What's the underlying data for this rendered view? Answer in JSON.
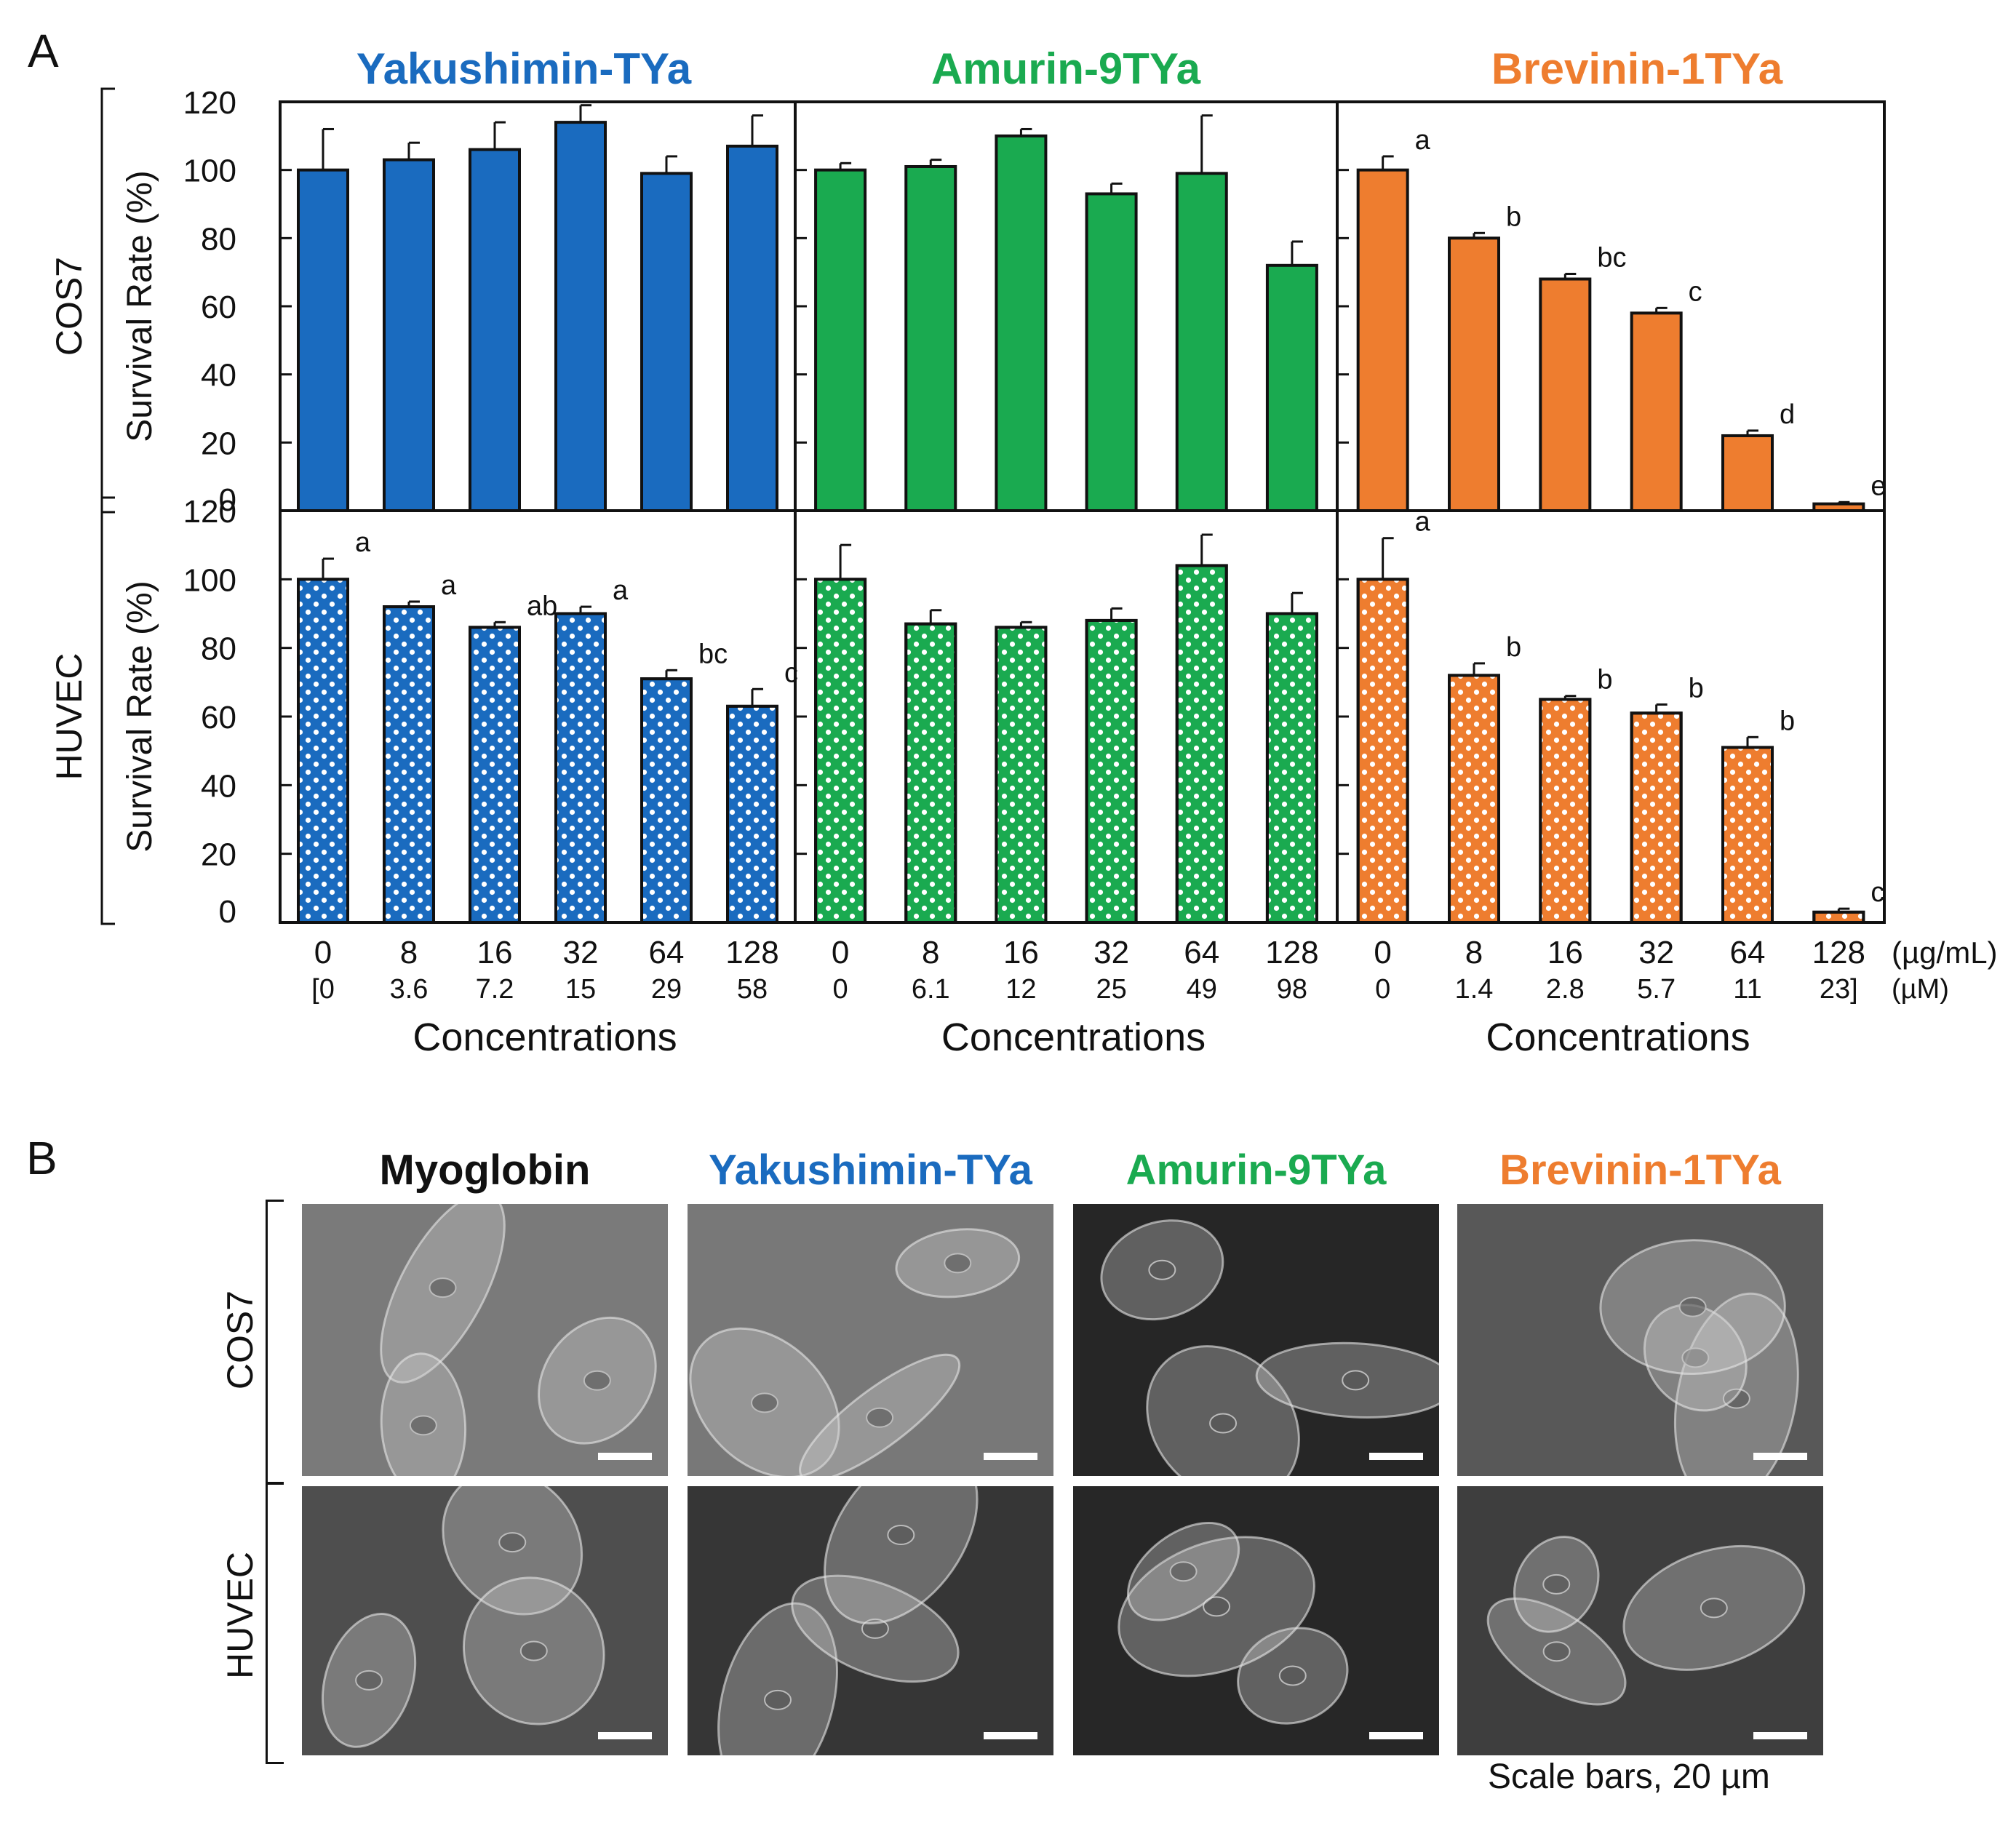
{
  "panel_a_label": "A",
  "panel_b_label": "B",
  "colors": {
    "yakushimin": "#1a6bbf",
    "amurin": "#1aaa50",
    "brevinin": "#ee7d2f",
    "myoglobin": "#111111"
  },
  "peptides": [
    "Yakushimin-TYa",
    "Amurin-9TYa",
    "Brevinin-1TYa"
  ],
  "cell_lines": [
    "COS7",
    "HUVEC"
  ],
  "y_axis_title": "Survival  Rate (%)",
  "y_ticks": [
    "120",
    "100",
    "80",
    "60",
    "40",
    "20",
    "0"
  ],
  "x_axis_title": "Concentrations",
  "unit_mass": "(µg/mL)",
  "unit_molar": "(µM)",
  "chart_data": {
    "type": "bar",
    "ylabel": "Survival  Rate (%)",
    "xlabel": "Concentrations",
    "ylim": [
      0,
      120
    ],
    "categories": [
      "0",
      "8",
      "16",
      "32",
      "64",
      "128"
    ],
    "molar_labels": [
      [
        "[0",
        "3.6",
        "7.2",
        "15",
        "29",
        "58"
      ],
      [
        "0",
        "6.1",
        "12",
        "25",
        "49",
        "98"
      ],
      [
        "0",
        "1.4",
        "2.8",
        "5.7",
        "11",
        "23]"
      ]
    ],
    "panels": [
      {
        "cell": "COS7",
        "peptide": "Yakushimin-TYa",
        "values": [
          100,
          103,
          106,
          114,
          99,
          107
        ],
        "errors": [
          12,
          5,
          8,
          5,
          5,
          9
        ],
        "letters": [
          "",
          "",
          "",
          "",
          "",
          ""
        ]
      },
      {
        "cell": "COS7",
        "peptide": "Amurin-9TYa",
        "values": [
          100,
          101,
          110,
          93,
          99,
          72
        ],
        "errors": [
          2,
          2,
          2,
          3,
          17,
          7
        ],
        "letters": [
          "",
          "",
          "",
          "",
          "",
          ""
        ]
      },
      {
        "cell": "COS7",
        "peptide": "Brevinin-1TYa",
        "values": [
          100,
          80,
          68,
          58,
          22,
          2
        ],
        "errors": [
          4,
          1.5,
          1.5,
          1.5,
          1.5,
          0.5
        ],
        "letters": [
          "a",
          "b",
          "bc",
          "c",
          "d",
          "e"
        ]
      },
      {
        "cell": "HUVEC",
        "peptide": "Yakushimin-TYa",
        "values": [
          100,
          92,
          86,
          90,
          71,
          63
        ],
        "errors": [
          6,
          1.5,
          1.5,
          2,
          2.5,
          5
        ],
        "letters": [
          "a",
          "a",
          "ab",
          "a",
          "bc",
          "c"
        ]
      },
      {
        "cell": "HUVEC",
        "peptide": "Amurin-9TYa",
        "values": [
          100,
          87,
          86,
          88,
          104,
          90
        ],
        "errors": [
          10,
          4,
          1.5,
          3.5,
          9,
          6
        ],
        "letters": [
          "",
          "",
          "",
          "",
          "",
          ""
        ]
      },
      {
        "cell": "HUVEC",
        "peptide": "Brevinin-1TYa",
        "values": [
          100,
          72,
          65,
          61,
          51,
          3
        ],
        "errors": [
          12,
          3.5,
          1,
          2.5,
          3,
          1
        ],
        "letters": [
          "a",
          "b",
          "b",
          "b",
          "b",
          "c"
        ]
      }
    ]
  },
  "micrographs": {
    "column_titles": [
      "Myoglobin",
      "Yakushimin-TYa",
      "Amurin-9TYa",
      "Brevinin-1TYa"
    ],
    "row_labels": [
      "COS7",
      "HUVEC"
    ],
    "scale_bar_note": "Scale bars, 20 µm"
  }
}
